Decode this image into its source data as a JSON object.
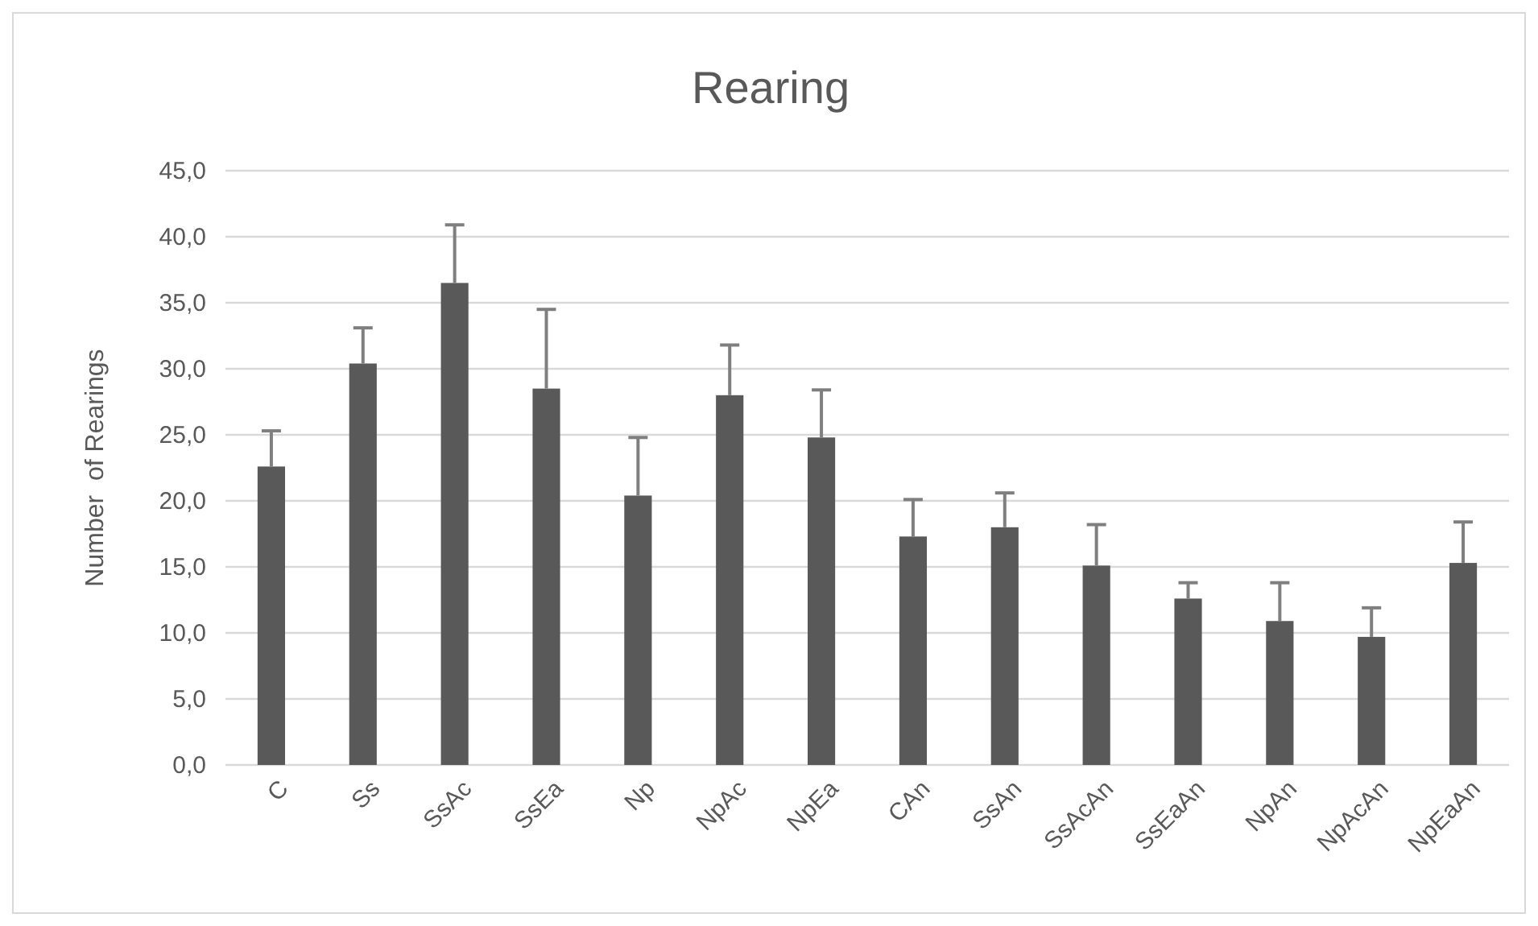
{
  "chart_data": {
    "type": "bar",
    "title": "Rearing",
    "ylabel": "Number  of Rearings",
    "categories": [
      "C",
      "Ss",
      "SsAc",
      "SsEa",
      "Np",
      "NpAc",
      "NpEa",
      "CAn",
      "SsAn",
      "SsAcAn",
      "SsEaAn",
      "NpAn",
      "NpAcAn",
      "NpEaAn"
    ],
    "values": [
      22.6,
      30.4,
      36.5,
      28.5,
      20.4,
      28.0,
      24.8,
      17.3,
      18.0,
      15.1,
      12.6,
      10.9,
      9.7,
      15.3
    ],
    "errors": [
      [
        22.6,
        25.3
      ],
      [
        30.4,
        33.1
      ],
      [
        36.5,
        40.9
      ],
      [
        28.5,
        34.5
      ],
      [
        20.4,
        24.8
      ],
      [
        28.0,
        31.8
      ],
      [
        24.8,
        28.4
      ],
      [
        17.3,
        20.1
      ],
      [
        18.0,
        20.6
      ],
      [
        15.1,
        18.2
      ],
      [
        12.6,
        13.8
      ],
      [
        10.9,
        13.8
      ],
      [
        9.7,
        11.9
      ],
      [
        15.3,
        18.4
      ]
    ],
    "color": "#595959",
    "ylim": [
      0,
      45
    ],
    "yticks": [
      {
        "value": 0,
        "label": "0,0"
      },
      {
        "value": 5,
        "label": "5,0"
      },
      {
        "value": 10,
        "label": "10,0"
      },
      {
        "value": 15,
        "label": "15,0"
      },
      {
        "value": 20,
        "label": "20,0"
      },
      {
        "value": 25,
        "label": "25,0"
      },
      {
        "value": 30,
        "label": "30,0"
      },
      {
        "value": 35,
        "label": "35,0"
      },
      {
        "value": 40,
        "label": "40,0"
      },
      {
        "value": 45,
        "label": "45,0"
      }
    ],
    "grid": "y"
  }
}
